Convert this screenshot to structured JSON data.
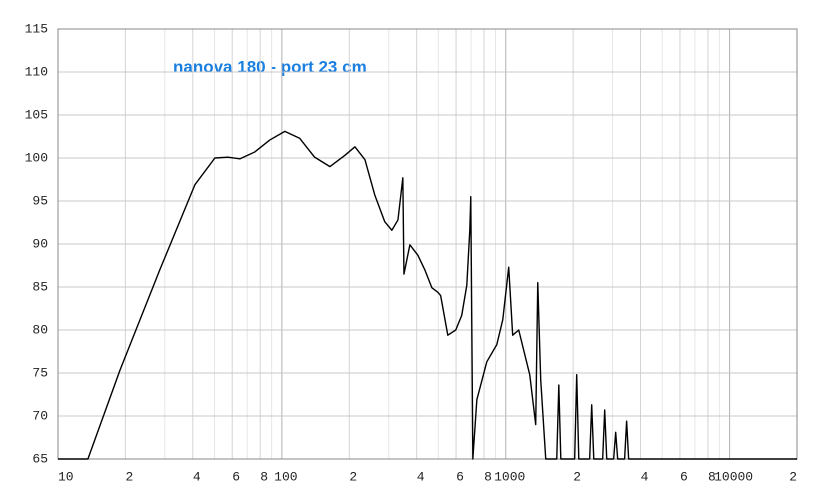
{
  "chart_data": {
    "type": "line",
    "title": "nanova 180 - port 23 cm",
    "title_color": "#1a7fe0",
    "x": [
      10,
      13.6,
      18.9,
      28.5,
      40.9,
      50.2,
      57.4,
      64.9,
      75.7,
      88.4,
      103.1,
      120,
      140,
      164,
      191,
      212,
      235,
      260,
      288,
      310,
      330,
      347,
      351,
      373,
      405,
      435,
      468,
      497,
      512,
      551,
      598,
      636,
      670,
      691,
      698,
      713,
      743,
      823,
      912,
      970,
      1031,
      1074,
      1143,
      1280,
      1361,
      1390,
      1433,
      1509,
      1690,
      1726,
      1762,
      2032,
      2075,
      2120,
      2371,
      2421,
      2473,
      2710,
      2767,
      2826,
      3034,
      3098,
      3162,
      3396,
      3467,
      3540,
      20000
    ],
    "values": [
      65,
      65,
      75.3,
      87,
      96.9,
      100,
      100.1,
      99.9,
      100.7,
      102.1,
      103.1,
      102.3,
      100.1,
      99,
      100.3,
      101.3,
      99.8,
      95.7,
      92.6,
      91.6,
      92.8,
      97.7,
      86.5,
      89.9,
      88.7,
      87,
      84.9,
      84.4,
      84,
      79.4,
      80,
      81.7,
      85.2,
      91.6,
      95.5,
      65,
      71.9,
      76.3,
      78.3,
      81.2,
      87.3,
      79.4,
      80,
      74.8,
      69,
      85.5,
      74.2,
      65,
      65,
      73.6,
      65,
      65,
      74.8,
      65,
      65,
      71.3,
      65,
      65,
      70.7,
      65,
      65,
      68.1,
      65,
      65,
      69.4,
      65,
      65
    ],
    "color": "#000000",
    "xlog": true,
    "grid": true,
    "xlim": [
      10,
      20000
    ],
    "ylim": [
      65,
      115
    ],
    "yticks": [
      65,
      70,
      75,
      80,
      85,
      90,
      95,
      100,
      105,
      110,
      115
    ],
    "xticks": [
      10,
      {
        "value": 20,
        "label": "2"
      },
      {
        "value": 40,
        "label": "4"
      },
      {
        "value": 60,
        "label": "6"
      },
      {
        "value": 80,
        "label": "8"
      },
      100,
      {
        "value": 200,
        "label": "2"
      },
      {
        "value": 400,
        "label": "4"
      },
      {
        "value": 600,
        "label": "6"
      },
      {
        "value": 800,
        "label": "8"
      },
      1000,
      {
        "value": 2000,
        "label": "2"
      },
      {
        "value": 4000,
        "label": "4"
      },
      {
        "value": 6000,
        "label": "6"
      },
      {
        "value": 8000,
        "label": "8"
      },
      10000,
      {
        "value": 20000,
        "label": "2"
      }
    ],
    "xminorgrid": [
      30,
      50,
      70,
      90,
      300,
      500,
      700,
      900,
      3000,
      5000,
      7000,
      9000
    ]
  }
}
